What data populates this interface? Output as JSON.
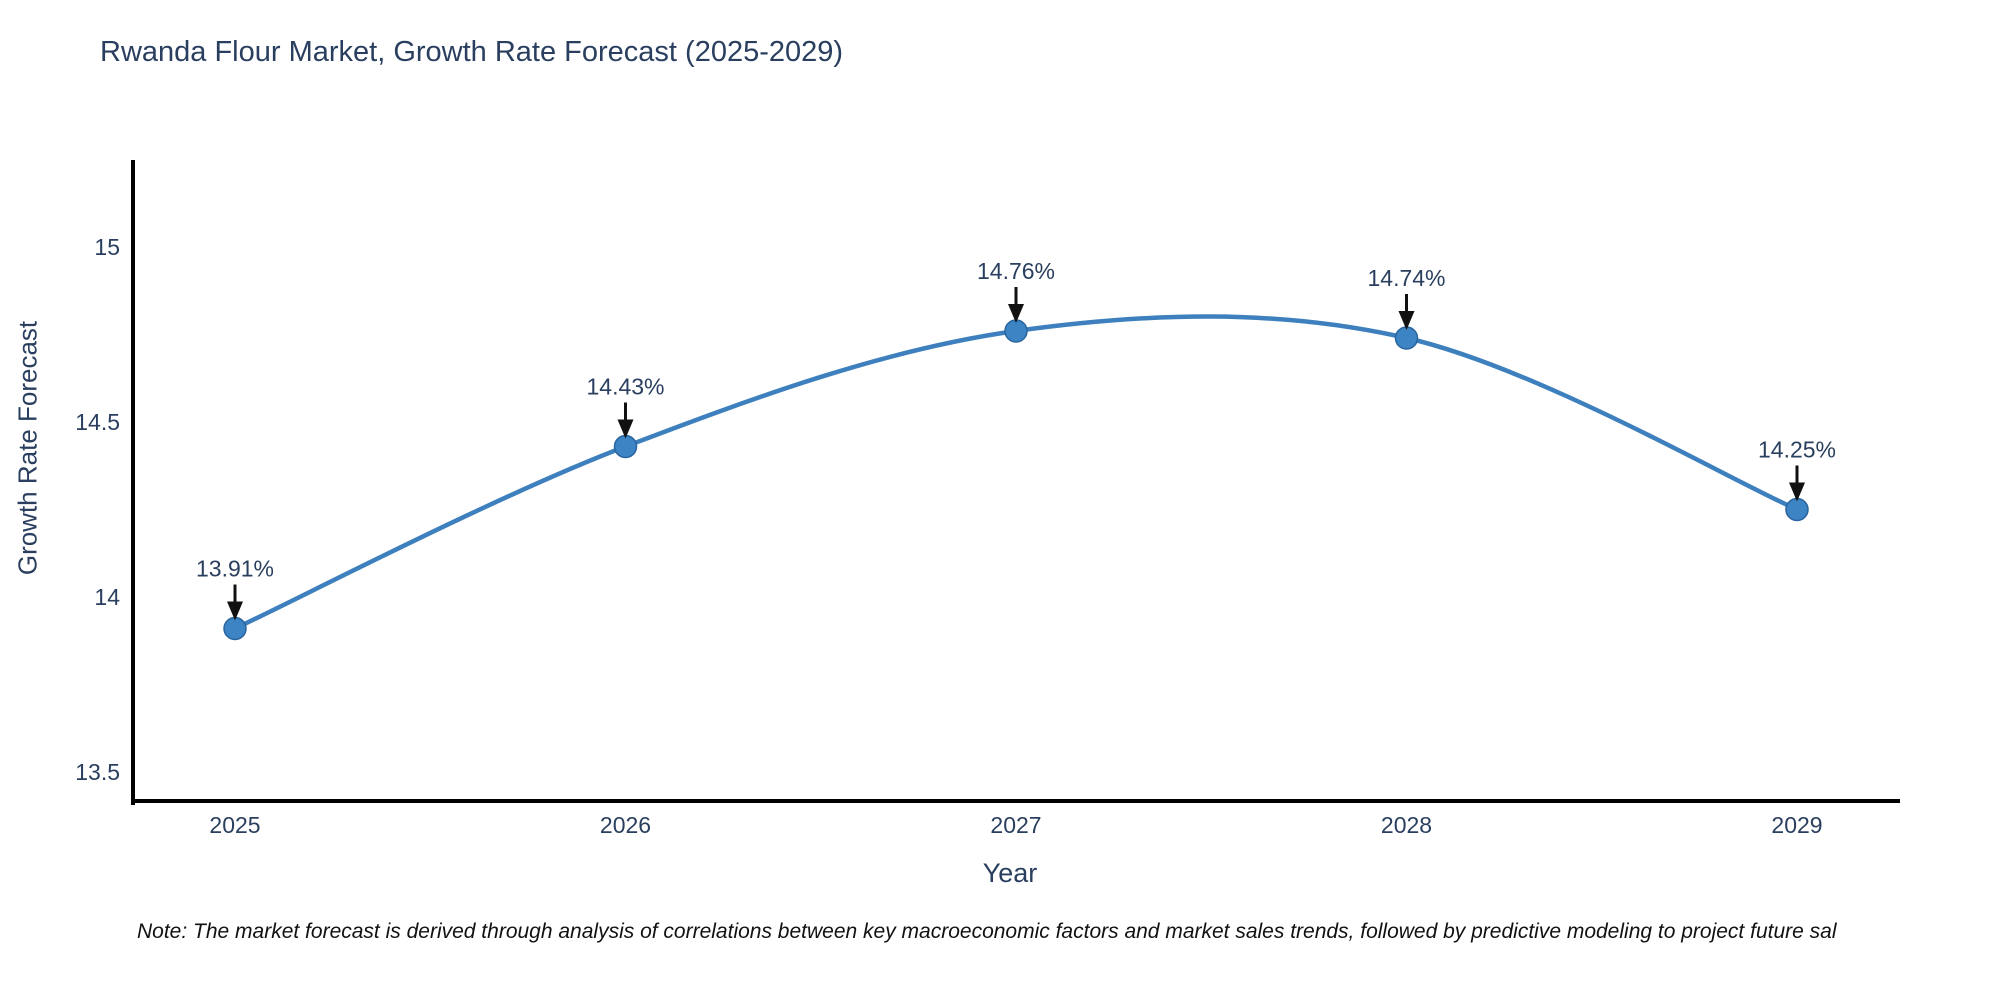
{
  "title": "Rwanda Flour Market, Growth Rate Forecast (2025-2029)",
  "note": "Note: The market forecast is derived through analysis of correlations between key macroeconomic factors and market sales trends, followed by predictive modeling to project future sal",
  "chart_data": {
    "type": "line",
    "title": "Rwanda Flour Market, Growth Rate Forecast (2025-2029)",
    "xlabel": "Year",
    "ylabel": "Growth Rate Forecast",
    "categories": [
      "2025",
      "2026",
      "2027",
      "2028",
      "2029"
    ],
    "values": [
      13.91,
      14.43,
      14.76,
      14.74,
      14.25
    ],
    "point_labels": [
      "13.91%",
      "14.43%",
      "14.76%",
      "14.74%",
      "14.25%"
    ],
    "y_ticks": [
      15,
      14.5,
      14,
      13.5
    ],
    "y_tick_labels": [
      "15",
      "14.5",
      "14",
      "13.5"
    ],
    "ylim": [
      13.4,
      15.25
    ],
    "grid": false,
    "legend": "none",
    "line_shape": "spline",
    "annotations": "value label with downward arrow above each point",
    "colors": {
      "line": "#3d80bd",
      "marker": "#3d84c4",
      "marker_edge": "#2a649e",
      "axis": "#000000",
      "text": "#2a3f5f",
      "annotation_arrow": "#111111"
    }
  }
}
